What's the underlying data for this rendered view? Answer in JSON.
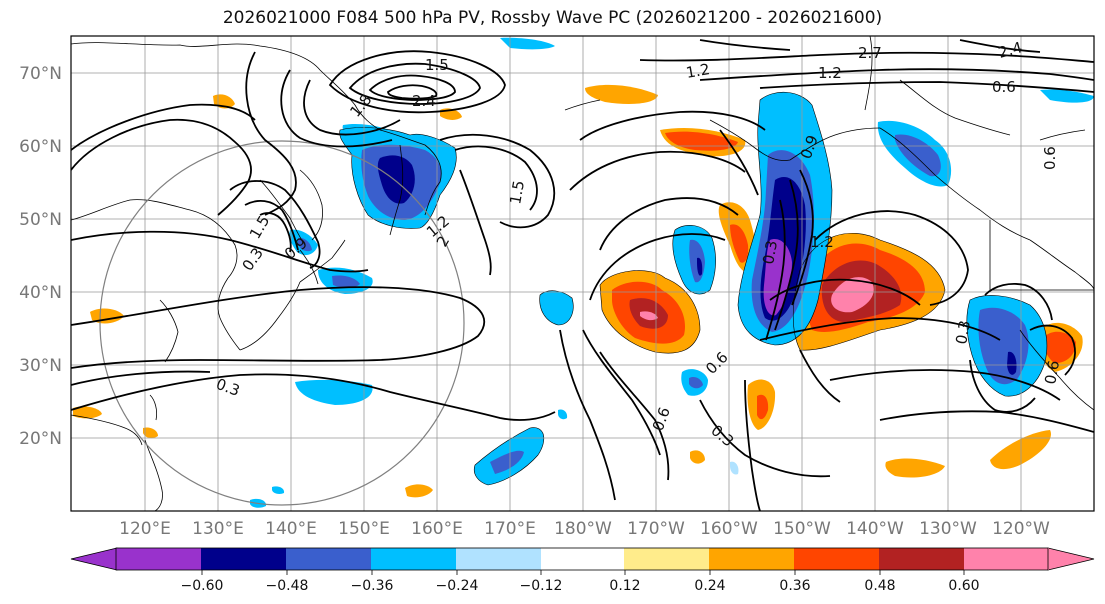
{
  "title": "2026021000 F084 500 hPa PV, Rossby Wave PC (2026021200 - 2026021600)",
  "lat_labels": [
    "70°N",
    "60°N",
    "50°N",
    "40°N",
    "30°N",
    "20°N"
  ],
  "lon_labels": [
    "120°E",
    "130°E",
    "140°E",
    "150°E",
    "160°E",
    "170°E",
    "180°W",
    "170°W",
    "160°W",
    "150°W",
    "140°W",
    "130°W",
    "120°W"
  ],
  "colorbar": {
    "colors": [
      "#9932CC",
      "#00008B",
      "#3A5FCD",
      "#00BFFF",
      "#B0E2FF",
      "#FFFFFF",
      "#FFEC8B",
      "#FFA500",
      "#FF4500",
      "#B22222",
      "#FF82AB"
    ],
    "tick_labels": [
      "−0.60",
      "−0.48",
      "−0.36",
      "−0.24",
      "−0.12",
      "0.12",
      "0.24",
      "0.36",
      "0.48",
      "0.60"
    ]
  },
  "contour_labels": [
    "1.5",
    "2.4",
    "1.8",
    "1.2",
    "2.7",
    "2.4",
    "0.6",
    "1.2",
    "1.5",
    "0.9",
    "0.6",
    "0.3",
    "0.9",
    "1.2",
    "2",
    "1.5",
    "1.2",
    "0.3",
    "0.6",
    "0.6",
    "0.3",
    "0.3",
    "0.6",
    "0.3"
  ]
}
